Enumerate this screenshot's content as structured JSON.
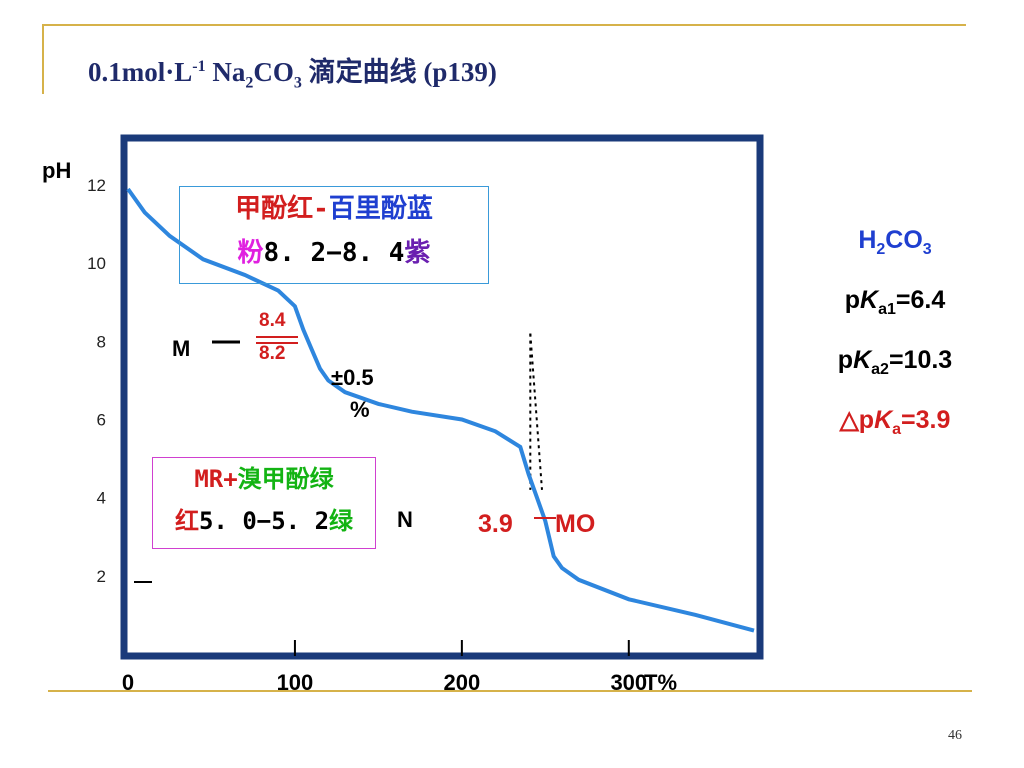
{
  "slide": {
    "title_main": "0.1mol·L",
    "title_sup": "-1",
    "title_na": "Na",
    "title_na_sub": "2",
    "title_co": "CO",
    "title_co_sub": "3",
    "title_cn": " 滴定曲线",
    "title_ref": "(p139)",
    "page_number": "46"
  },
  "indicator_box_1": {
    "line1_red": "甲酚红",
    "line1_dash": "-",
    "line1_blue": "百里酚蓝",
    "line2_magenta": "粉",
    "line2_range": "8. 2−8. 4",
    "line2_purple": "紫",
    "border_color": "#3a9ad9"
  },
  "indicator_box_2": {
    "line1_red": "MR+",
    "line1_green": "溴甲酚绿",
    "line2_red": "红",
    "line2_range": "5. 0−5. 2",
    "line2_green": "绿",
    "border_color": "#d040d0"
  },
  "annotations": {
    "m_label": "M",
    "n_label": "N",
    "ph_84": "8.4",
    "ph_82": "8.2",
    "error": "±0.5",
    "percent": "%",
    "mo_ph": "3.9",
    "mo_label": "MO"
  },
  "constants": {
    "acid_h": "H",
    "acid_h_sub": "2",
    "acid_co": "CO",
    "acid_co_sub": "3",
    "pka1_p": "p",
    "pka1_k": "K",
    "pka1_sub": "a1",
    "pka1_val": "=6.4",
    "pka2_p": "p",
    "pka2_k": "K",
    "pka2_sub": "a2",
    "pka2_val": "=10.3",
    "dpka_tri": "△p",
    "dpka_k": "K",
    "dpka_sub": "a",
    "dpka_val": "=3.9"
  },
  "chart_data": {
    "type": "line",
    "ylabel": "pH",
    "xlabel": "T%",
    "x_ticks": [
      "0",
      "100",
      "200",
      "300"
    ],
    "y_ticks": [
      "2",
      "4",
      "6",
      "8",
      "10",
      "12"
    ],
    "xlim": [
      0,
      375
    ],
    "ylim": [
      0,
      13
    ],
    "series": [
      {
        "x": [
          0,
          10,
          25,
          45,
          70,
          90,
          100,
          105,
          110,
          115,
          120,
          130,
          150,
          170,
          200,
          220,
          235,
          240,
          245,
          250,
          255,
          260,
          270,
          300,
          340,
          375
        ],
        "y": [
          11.9,
          11.3,
          10.7,
          10.1,
          9.7,
          9.3,
          8.9,
          8.3,
          7.8,
          7.3,
          7.0,
          6.7,
          6.4,
          6.2,
          6.0,
          5.7,
          5.3,
          4.6,
          4.0,
          3.4,
          2.5,
          2.2,
          1.9,
          1.4,
          1.0,
          0.6
        ],
        "color": "#2e86de"
      }
    ],
    "dotted_guides": [
      {
        "x": [
          241,
          241
        ],
        "y": [
          8.2,
          4.2
        ]
      },
      {
        "x": [
          241,
          248
        ],
        "y": [
          8.2,
          4.2
        ]
      }
    ],
    "frame_color": "#1a3a7a",
    "grid": false
  }
}
